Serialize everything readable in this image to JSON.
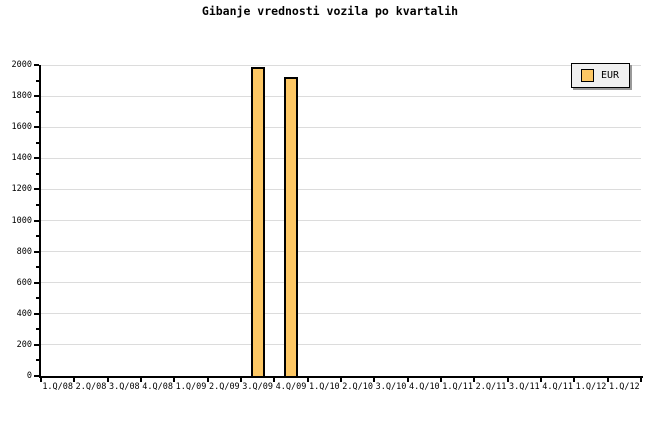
{
  "chart_data": {
    "type": "bar",
    "title": "Gibanje vrednosti vozila po kvartalih",
    "categories": [
      "1.Q/08",
      "2.Q/08",
      "3.Q/08",
      "4.Q/08",
      "1.Q/09",
      "2.Q/09",
      "3.Q/09",
      "4.Q/09",
      "1.Q/10",
      "2.Q/10",
      "3.Q/10",
      "4.Q/10",
      "1.Q/11",
      "2.Q/11",
      "3.Q/11",
      "4.Q/11",
      "1.Q/12",
      "1.Q/12"
    ],
    "series": [
      {
        "name": "EUR",
        "values": [
          null,
          null,
          null,
          null,
          null,
          null,
          1990,
          1925,
          null,
          null,
          null,
          null,
          null,
          null,
          null,
          null,
          null,
          null
        ]
      }
    ],
    "xlabel": "",
    "ylabel": "",
    "ylim": [
      0,
      2000
    ],
    "y_major_step": 200,
    "y_minor_step": 100,
    "grid": true,
    "legend_position": "top-right",
    "colors": {
      "bar_fill": "#FDC764",
      "bar_border": "#000000",
      "gridline": "#DCDCDC",
      "axis": "#000000",
      "text": "#000000",
      "legend_bg": "#F0F0F0",
      "legend_shadow": "#999999",
      "background": "#FFFFFF"
    }
  }
}
